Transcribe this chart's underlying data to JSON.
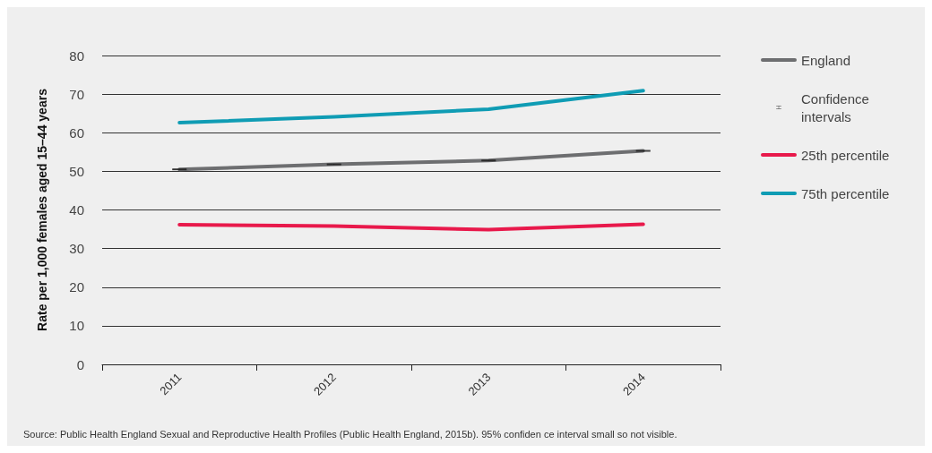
{
  "chart_data": {
    "type": "line",
    "ylabel": "Rate per 1,000 females aged 15–44 years",
    "categories": [
      "2011",
      "2012",
      "2013",
      "2014"
    ],
    "series": [
      {
        "name": "England",
        "color": "#6d6e70",
        "values": [
          50.5,
          51.8,
          52.8,
          55.3
        ],
        "errors": [
          0.1,
          0.1,
          0.1,
          0.1
        ]
      },
      {
        "name": "25th percentile",
        "color": "#e8194b",
        "values": [
          36.2,
          35.8,
          34.9,
          36.3
        ]
      },
      {
        "name": "75th percentile",
        "color": "#0f9cb4",
        "values": [
          62.6,
          64.1,
          66.1,
          70.9
        ]
      }
    ],
    "ylim": [
      0,
      80
    ],
    "yticks": [
      0,
      10,
      20,
      30,
      40,
      50,
      60,
      70,
      80
    ],
    "grid": "y",
    "legend": "right",
    "marker": "none",
    "line_style": "solid",
    "annotations": [
      "Source: Public Health England Sexual and Reproductive Health Profiles (Public Health England, 2015b). 95% confiden ce interval small so not visible.",
      "Confidence intervals"
    ]
  }
}
